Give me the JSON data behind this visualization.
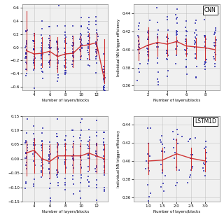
{
  "panels": [
    {
      "title": "",
      "ylabel": "",
      "xlabel": "Number of layers/blocks",
      "x_ticks": [
        4,
        6,
        8,
        10,
        12
      ],
      "x_positions": [
        3,
        4,
        5,
        6,
        7,
        8,
        9,
        10,
        11,
        12,
        13
      ],
      "mean_line": [
        -0.05,
        -0.1,
        -0.09,
        -0.06,
        -0.14,
        -0.1,
        -0.09,
        0.02,
        0.04,
        0.07,
        -0.48
      ],
      "errbar_tops": [
        0.55,
        0.22,
        0.15,
        0.18,
        0.16,
        0.14,
        0.18,
        0.18,
        0.22,
        0.22,
        0.12
      ],
      "errbar_bots": [
        -0.35,
        -0.32,
        -0.3,
        -0.28,
        -0.38,
        -0.32,
        -0.3,
        -0.16,
        -0.18,
        -0.12,
        -0.55
      ],
      "ylim": [
        -0.65,
        0.65
      ],
      "scatter_spread": 0.2,
      "n_points": 25,
      "seed": 42
    },
    {
      "title": "CNN",
      "ylabel": "Individual NN trigger efficiency",
      "xlabel": "Number of layers/blocks",
      "x_ticks": [
        2,
        4,
        6,
        8
      ],
      "x_positions": [
        1,
        2,
        3,
        4,
        5,
        6,
        7,
        8,
        9
      ],
      "mean_line": [
        0.4,
        0.405,
        0.408,
        0.406,
        0.409,
        0.404,
        0.403,
        0.402,
        0.4
      ],
      "errbar_tops": [
        0.415,
        0.425,
        0.415,
        0.418,
        0.415,
        0.412,
        0.413,
        0.415,
        0.415
      ],
      "errbar_bots": [
        0.388,
        0.39,
        0.393,
        0.393,
        0.395,
        0.393,
        0.39,
        0.388,
        0.388
      ],
      "ylim": [
        0.355,
        0.45
      ],
      "scatter_spread": 0.022,
      "n_points": 18,
      "seed": 10
    },
    {
      "title": "",
      "ylabel": "",
      "xlabel": "Number of layers/blocks",
      "x_ticks": [
        4,
        6,
        8,
        10,
        12
      ],
      "x_positions": [
        3,
        4,
        5,
        6,
        7,
        8,
        9,
        10,
        11,
        12,
        13
      ],
      "mean_line": [
        0.02,
        0.03,
        0.0,
        -0.01,
        0.01,
        0.01,
        0.01,
        0.01,
        0.02,
        0.01,
        0.0
      ],
      "errbar_tops": [
        0.06,
        0.07,
        0.055,
        0.05,
        0.055,
        0.055,
        0.055,
        0.055,
        0.06,
        0.055,
        0.05
      ],
      "errbar_bots": [
        -0.06,
        -0.05,
        -0.06,
        -0.07,
        -0.05,
        -0.05,
        -0.05,
        -0.05,
        -0.04,
        -0.05,
        -0.05
      ],
      "ylim": [
        -0.15,
        0.15
      ],
      "scatter_spread": 0.07,
      "n_points": 20,
      "seed": 7
    },
    {
      "title": "LSTM1D",
      "ylabel": "Individual NN trigger efficiency",
      "xlabel": "Number of layers/blocks",
      "x_ticks": [
        1.0,
        1.5,
        2.0,
        2.5,
        3.0
      ],
      "x_positions": [
        1.0,
        1.5,
        2.0,
        2.5,
        3.0
      ],
      "mean_line": [
        0.4,
        0.401,
        0.408,
        0.403,
        0.4
      ],
      "errbar_tops": [
        0.42,
        0.415,
        0.425,
        0.415,
        0.413
      ],
      "errbar_bots": [
        0.385,
        0.388,
        0.39,
        0.39,
        0.388
      ],
      "ylim": [
        0.355,
        0.45
      ],
      "scatter_spread": 0.022,
      "n_points": 15,
      "seed": 55
    }
  ],
  "bg_color": "#f0f0f0",
  "line_color": "#cc2222",
  "scatter_color": "#2222aa",
  "grid_color": "#bbbbbb",
  "figure_bg": "#ffffff"
}
